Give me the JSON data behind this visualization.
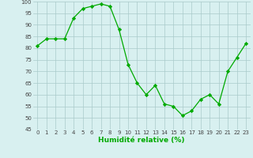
{
  "x": [
    0,
    1,
    2,
    3,
    4,
    5,
    6,
    7,
    8,
    9,
    10,
    11,
    12,
    13,
    14,
    15,
    16,
    17,
    18,
    19,
    20,
    21,
    22,
    23
  ],
  "y": [
    81,
    84,
    84,
    84,
    93,
    97,
    98,
    99,
    98,
    88,
    73,
    65,
    60,
    64,
    56,
    55,
    51,
    53,
    58,
    60,
    56,
    70,
    76,
    82
  ],
  "line_color": "#00aa00",
  "marker": "D",
  "marker_size": 2.2,
  "bg_color": "#d8f0f0",
  "grid_color": "#aacaca",
  "xlabel": "Humidité relative (%)",
  "xlabel_color": "#00aa00",
  "ylim": [
    45,
    100
  ],
  "yticks": [
    45,
    50,
    55,
    60,
    65,
    70,
    75,
    80,
    85,
    90,
    95,
    100
  ],
  "xticks": [
    0,
    1,
    2,
    3,
    4,
    5,
    6,
    7,
    8,
    9,
    10,
    11,
    12,
    13,
    14,
    15,
    16,
    17,
    18,
    19,
    20,
    21,
    22,
    23
  ],
  "tick_color": "#444444",
  "tick_fontsize": 5.0,
  "xlabel_fontsize": 6.5
}
